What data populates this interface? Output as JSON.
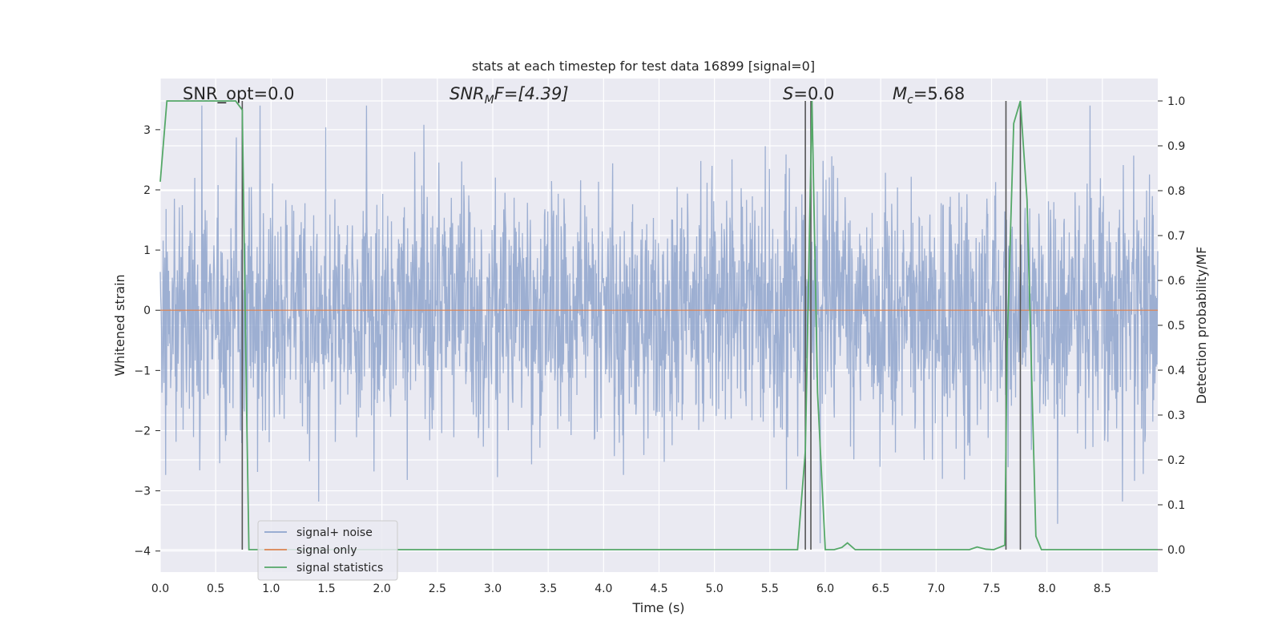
{
  "chart_data": {
    "type": "line",
    "title": "stats at each timestep for test data 16899 [signal=0]",
    "xlabel": "Time (s)",
    "ylabel_left": "Whitened strain",
    "ylabel_right": "Detection probability/MF",
    "xlim": [
      0.0,
      9.0
    ],
    "ylim_left": [
      -4.35,
      3.85
    ],
    "ylim_right": [
      -0.05,
      1.05
    ],
    "x_ticks": [
      "0.0",
      "0.5",
      "1.0",
      "1.5",
      "2.0",
      "2.5",
      "3.0",
      "3.5",
      "4.0",
      "4.5",
      "5.0",
      "5.5",
      "6.0",
      "6.5",
      "7.0",
      "7.5",
      "8.0",
      "8.5"
    ],
    "y_ticks_left": [
      "3",
      "2",
      "1",
      "0",
      "−1",
      "−2",
      "−3",
      "−4"
    ],
    "y_ticks_right": [
      "1.0",
      "0.9",
      "0.8",
      "0.7",
      "0.6",
      "0.5",
      "0.4",
      "0.3",
      "0.2",
      "0.1",
      "0.0"
    ],
    "grid": true,
    "legend_position": "lower-left",
    "annotations": {
      "snr_opt": "SNR_opt=0.0",
      "snr_mf_main": "SNR",
      "snr_mf_sub": "M",
      "snr_mf_rest": "F=[4.39]",
      "s_main": "S",
      "s_rest": "=0.0",
      "mc_main": "M",
      "mc_sub": "c",
      "mc_rest": "=5.68"
    },
    "series": [
      {
        "name": "signal+ noise",
        "color": "#8fa5cd",
        "axis": "left",
        "description_values": "noise strain, approx Gaussian with std 1, range about -4 to 3.4",
        "noise_sigma": 1.0
      },
      {
        "name": "signal only",
        "color": "#dd8452",
        "axis": "left",
        "constant_value": 0.0
      },
      {
        "name": "signal statistics",
        "color": "#55a868",
        "axis": "right",
        "x": [
          0.0,
          0.06,
          0.12,
          0.3,
          0.5,
          0.68,
          0.74,
          0.78,
          0.8,
          1.0,
          2.0,
          3.0,
          4.0,
          5.0,
          5.75,
          5.82,
          5.88,
          5.93,
          6.0,
          6.08,
          6.15,
          6.2,
          6.27,
          6.5,
          7.0,
          7.3,
          7.37,
          7.45,
          7.52,
          7.62,
          7.64,
          7.7,
          7.76,
          7.82,
          7.9,
          7.95,
          8.1,
          8.5,
          9.0
        ],
        "y": [
          0.82,
          1.0,
          1.0,
          1.0,
          1.0,
          1.0,
          0.98,
          0.3,
          0.0,
          0.0,
          0.0,
          0.0,
          0.0,
          0.0,
          0.0,
          0.22,
          1.0,
          0.35,
          0.0,
          0.0,
          0.005,
          0.015,
          0.0,
          0.0,
          0.0,
          0.0,
          0.006,
          0.001,
          0.0,
          0.01,
          0.45,
          0.95,
          1.0,
          0.78,
          0.03,
          0.0,
          0.0,
          0.0,
          0.0
        ]
      }
    ],
    "vertical_markers": [
      0.74,
      5.82,
      5.87,
      7.63,
      7.76
    ]
  }
}
